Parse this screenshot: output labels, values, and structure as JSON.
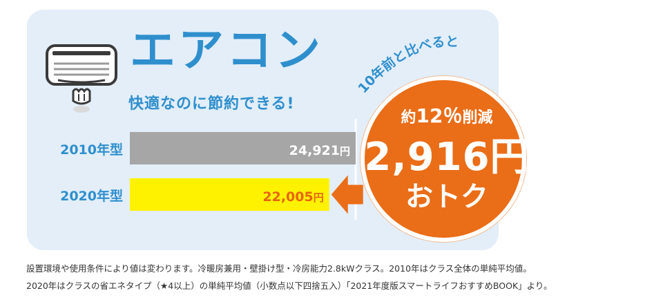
{
  "title": "エアコン",
  "subtitle": "快適なのに節約できる!",
  "chart_data": {
    "type": "bar",
    "orientation": "horizontal",
    "categories": [
      "2010年型",
      "2020年型"
    ],
    "values": [
      24921,
      22005
    ],
    "value_labels": [
      "24,921",
      "22,005"
    ],
    "unit_suffix": "円",
    "bar_colors": [
      "#a6a6a6",
      "#fff200"
    ],
    "value_label_colors": [
      "#ffffff",
      "#e8650f"
    ],
    "category_label_color": "#2f8fcd",
    "xlim": [
      0,
      24921
    ],
    "grid": false,
    "legend": "none"
  },
  "callout": {
    "arc_text": "10年前と比べると",
    "line1_prefix": "約",
    "line1_percent": "12％",
    "line1_suffix": "削減",
    "amount": "2,916円",
    "line3": "おトク",
    "color": "#ea6d17"
  },
  "arrow_color": "#ea6d17",
  "footnote": [
    "設置環境や使用条件により値は変わります。冷暖房兼用・壁掛け型・冷房能力2.8kWクラス。2010年はクラス全体の単純平均値。",
    "2020年はクラスの省エネタイプ（★4以上）の単純平均値（小数点以下四捨五入）「2021年度版スマートライフおすすめBOOK」より。"
  ]
}
